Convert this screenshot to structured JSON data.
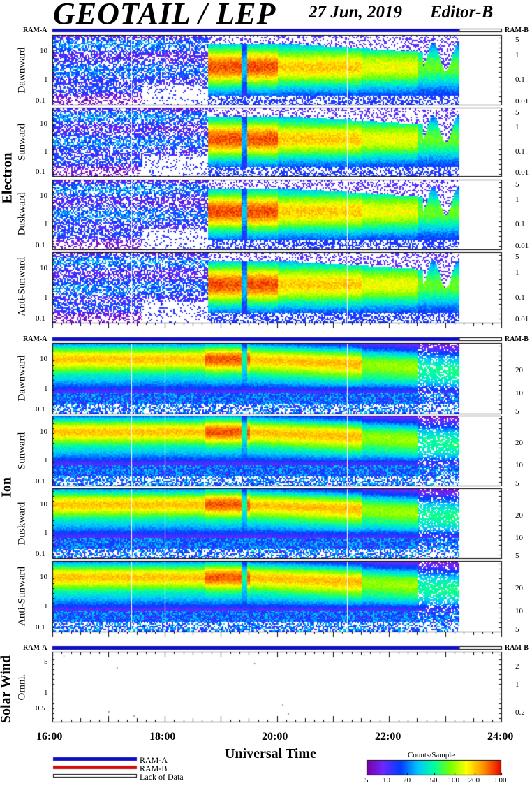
{
  "header": {
    "title": "GEOTAIL / LEP",
    "date": "27 Jun, 2019",
    "editor": "Editor-B"
  },
  "ram": {
    "a": "RAM-A",
    "b": "RAM-B"
  },
  "groups": {
    "electron": "Electron",
    "ion": "Ion",
    "solar_wind": "Solar Wind"
  },
  "panels": {
    "e1": "Dawnward",
    "e2": "Sunward",
    "e3": "Duskward",
    "e4": "Anti-Sunward",
    "i1": "Dawnward",
    "i2": "Sunward",
    "i3": "Duskward",
    "i4": "Anti-Sunward",
    "sw": "Omni."
  },
  "x_axis": {
    "label": "Universal Time",
    "ticks": [
      "16:00",
      "18:00",
      "20:00",
      "22:00",
      "24:00"
    ]
  },
  "legend": {
    "ram_a": "RAM-A",
    "ram_b": "RAM-B",
    "lack": "Lack of Data",
    "colorbar_title": "Counts/Sample",
    "colorbar_ticks": [
      "5",
      "10",
      "20",
      "50",
      "100",
      "200",
      "500"
    ]
  },
  "colors": {
    "ram_a": "#1010c0",
    "ram_b": "#d01010"
  },
  "chart_data": {
    "type": "heatmap",
    "x_range_hours": [
      16,
      24
    ],
    "data_end_hour": 23.25,
    "colorbar_range": [
      5,
      500
    ],
    "panels": [
      {
        "id": "e1",
        "group": "Electron",
        "name": "Dawnward",
        "left_ticks": [
          "10",
          "1",
          "0.1"
        ],
        "right_ticks": [
          "5",
          "1",
          "0.1",
          "0.01"
        ]
      },
      {
        "id": "e2",
        "group": "Electron",
        "name": "Sunward",
        "left_ticks": [
          "10",
          "1",
          "0.1"
        ],
        "right_ticks": [
          "5",
          "1",
          "0.1",
          "0.01"
        ]
      },
      {
        "id": "e3",
        "group": "Electron",
        "name": "Duskward",
        "left_ticks": [
          "10",
          "1",
          "0.1"
        ],
        "right_ticks": [
          "5",
          "1",
          "0.1",
          "0.01"
        ]
      },
      {
        "id": "e4",
        "group": "Electron",
        "name": "Anti-Sunward",
        "left_ticks": [
          "10",
          "1",
          "0.1"
        ],
        "right_ticks": [
          "5",
          "1",
          "0.1",
          "0.01"
        ]
      },
      {
        "id": "i1",
        "group": "Ion",
        "name": "Dawnward",
        "left_ticks": [
          "10",
          "1",
          "0.1"
        ],
        "right_ticks": [
          "20",
          "10",
          "5"
        ]
      },
      {
        "id": "i2",
        "group": "Ion",
        "name": "Sunward",
        "left_ticks": [
          "10",
          "1",
          "0.1"
        ],
        "right_ticks": [
          "20",
          "10",
          "5"
        ]
      },
      {
        "id": "i3",
        "group": "Ion",
        "name": "Duskward",
        "left_ticks": [
          "10",
          "1",
          "0.1"
        ],
        "right_ticks": [
          "20",
          "10",
          "5"
        ]
      },
      {
        "id": "i4",
        "group": "Ion",
        "name": "Anti-Sunward",
        "left_ticks": [
          "10",
          "1",
          "0.1"
        ],
        "right_ticks": [
          "20",
          "10",
          "5"
        ]
      },
      {
        "id": "sw",
        "group": "Solar Wind",
        "name": "Omni.",
        "left_ticks": [
          "5",
          "1",
          "0.5"
        ],
        "right_ticks": [
          "2",
          "1",
          "0.2"
        ]
      }
    ]
  }
}
